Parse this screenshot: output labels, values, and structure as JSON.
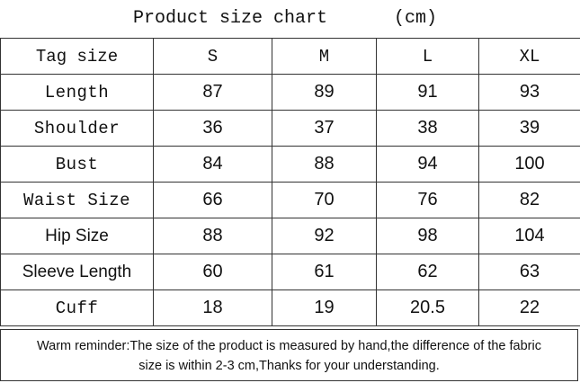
{
  "header": {
    "title": "Product size chart",
    "unit": "(cm)"
  },
  "table": {
    "columns": [
      "Tag size",
      "S",
      "M",
      "L",
      "XL"
    ],
    "rows": [
      [
        "Length",
        87,
        89,
        91,
        93
      ],
      [
        "Shoulder",
        36,
        37,
        38,
        39
      ],
      [
        "Bust",
        84,
        88,
        94,
        100
      ],
      [
        "Waist Size",
        66,
        70,
        76,
        82
      ],
      [
        "Hip Size",
        88,
        92,
        98,
        104
      ],
      [
        "Sleeve Length",
        60,
        61,
        62,
        63
      ],
      [
        "Cuff",
        18,
        19,
        20.5,
        22
      ]
    ]
  },
  "footer": {
    "note_line1": "Warm reminder:The size of the product is measured by hand,the difference of the fabric",
    "note_line2": "size is within 2-3 cm,Thanks for your understanding."
  }
}
